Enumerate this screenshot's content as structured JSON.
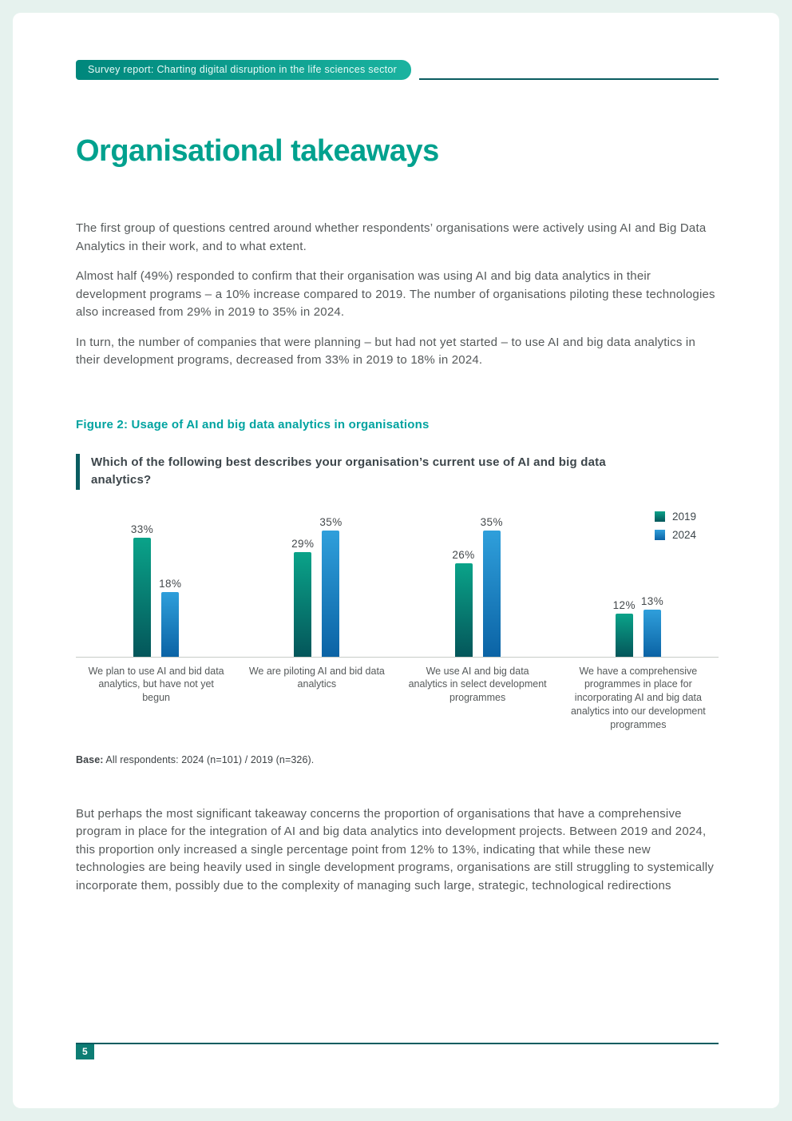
{
  "page": {
    "number": "5"
  },
  "header": {
    "banner": "Survey report: Charting digital disruption in the life sciences sector"
  },
  "title": "Organisational takeaways",
  "paragraphs": {
    "p1": "The first group of questions centred around whether respondents’ organisations were actively using AI and Big Data Analytics in their work, and to what extent.",
    "p2": "Almost half (49%) responded to confirm that their organisation was using AI and big data analytics in their development programs – a 10% increase compared to 2019. The number of organisations piloting these technologies also increased from 29% in 2019 to 35% in 2024.",
    "p3": "In turn, the number of companies that were planning – but had not yet started – to use AI and big data analytics in their development programs, decreased from 33% in 2019 to 18% in 2024.",
    "closing": "But perhaps the most significant takeaway concerns the proportion of organisations that have a comprehensive program in place for the integration of AI and big data analytics into development projects. Between 2019 and 2024, this proportion only increased a single percentage point from 12% to 13%, indicating that while these new technologies are being heavily used in single development programs, organisations are still struggling to systemically incorporate them, possibly due to the complexity of managing such large, strategic, technological redirections"
  },
  "figure": {
    "caption": "Figure 2: Usage of AI and big data analytics in organisations",
    "question": "Which of the following best describes your organisation’s current use of AI and big data analytics?",
    "base_label": "Base:",
    "base_text": " All respondents: 2024 (n=101) / 2019 (n=326)."
  },
  "colors": {
    "accent_teal": "#00a18e",
    "dark_teal": "#0a5c60",
    "caption_teal": "#00a3a0",
    "page_border": "#e6f2ee"
  },
  "chart_data": {
    "type": "bar",
    "title": "Which of the following best describes your organisation’s current use of AI and big data analytics?",
    "categories": [
      "We plan to use AI and bid data analytics, but have not yet begun",
      "We are piloting AI and bid data analytics",
      "We use AI and big data analytics in select development programmes",
      "We have a comprehensive programmes in place for incorporating AI and big data analytics into our development programmes"
    ],
    "series": [
      {
        "name": "2019",
        "values": [
          33,
          29,
          26,
          12
        ],
        "color_top": "#0aa389",
        "color_bottom": "#04565a"
      },
      {
        "name": "2024",
        "values": [
          18,
          35,
          35,
          13
        ],
        "color_top": "#2f9fdb",
        "color_bottom": "#0b63a5"
      }
    ],
    "value_suffix": "%",
    "ylim": [
      0,
      40
    ],
    "grid": false,
    "legend_position": "top-right",
    "xlabel": "",
    "ylabel": ""
  }
}
